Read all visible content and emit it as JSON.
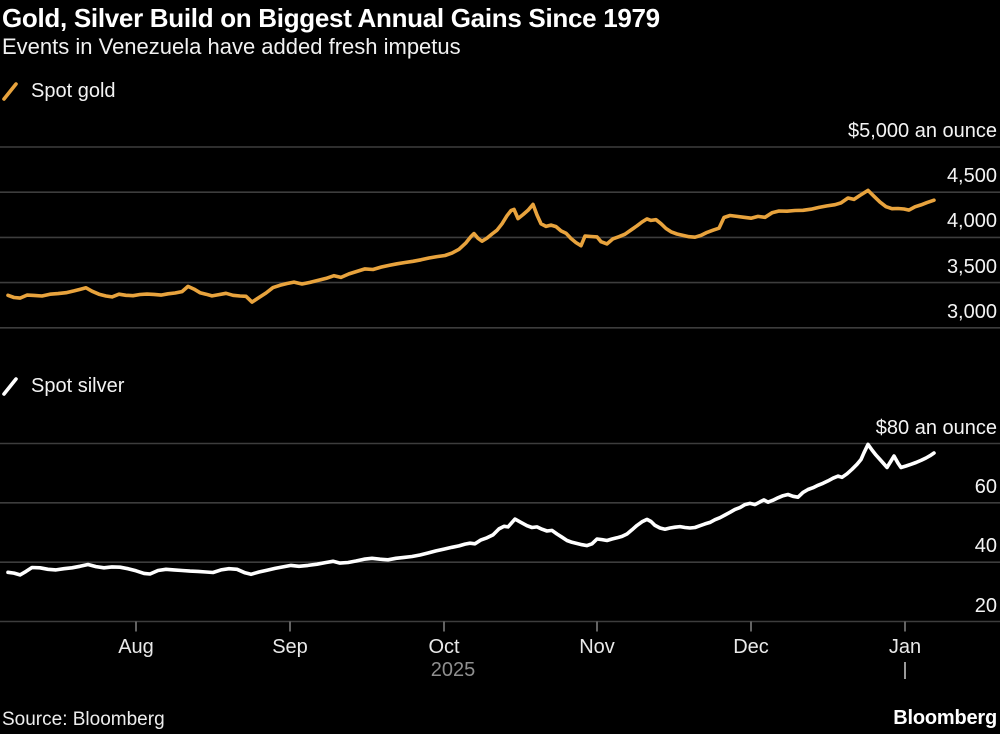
{
  "header": {
    "title": "Gold, Silver Build on Biggest Annual Gains Since 1979",
    "subtitle": "Events in Venezuela have added fresh impetus"
  },
  "source": {
    "label": "Source: Bloomberg"
  },
  "brand": {
    "logo": "Bloomberg"
  },
  "colors": {
    "background": "#000000",
    "gold": "#E8A33D",
    "silver": "#FFFFFF",
    "grid": "#3D3D3D",
    "axis_tick": "#6E6E6E",
    "muted_text": "#8F8F8F"
  },
  "xaxis": {
    "months": [
      "Aug",
      "Sep",
      "Oct",
      "Nov",
      "Dec",
      "Jan"
    ],
    "year_label": "2025",
    "year_divider": "|"
  },
  "chart_data": [
    {
      "type": "line",
      "series_name": "Spot gold",
      "color_key": "gold",
      "ylabel": "$ an ounce",
      "ylim": [
        3000,
        5000
      ],
      "grid": true,
      "legend_position": "top-left",
      "yticks": [
        {
          "value": 5000,
          "label": "$5,000 an ounce"
        },
        {
          "value": 4500,
          "label": "4,500"
        },
        {
          "value": 4000,
          "label": "4,000"
        },
        {
          "value": 3500,
          "label": "3,500"
        },
        {
          "value": 3000,
          "label": "3,000"
        }
      ],
      "points": [
        [
          8,
          3360
        ],
        [
          14,
          3335
        ],
        [
          20,
          3328
        ],
        [
          27,
          3362
        ],
        [
          34,
          3358
        ],
        [
          42,
          3352
        ],
        [
          50,
          3372
        ],
        [
          58,
          3378
        ],
        [
          66,
          3388
        ],
        [
          74,
          3408
        ],
        [
          80,
          3425
        ],
        [
          86,
          3442
        ],
        [
          92,
          3405
        ],
        [
          99,
          3372
        ],
        [
          106,
          3352
        ],
        [
          112,
          3342
        ],
        [
          119,
          3372
        ],
        [
          126,
          3360
        ],
        [
          133,
          3355
        ],
        [
          140,
          3368
        ],
        [
          147,
          3373
        ],
        [
          154,
          3370
        ],
        [
          161,
          3362
        ],
        [
          168,
          3376
        ],
        [
          175,
          3385
        ],
        [
          182,
          3400
        ],
        [
          188,
          3458
        ],
        [
          194,
          3428
        ],
        [
          200,
          3388
        ],
        [
          206,
          3372
        ],
        [
          212,
          3353
        ],
        [
          219,
          3367
        ],
        [
          226,
          3382
        ],
        [
          233,
          3360
        ],
        [
          240,
          3352
        ],
        [
          246,
          3348
        ],
        [
          252,
          3284
        ],
        [
          259,
          3335
        ],
        [
          266,
          3385
        ],
        [
          273,
          3445
        ],
        [
          280,
          3470
        ],
        [
          287,
          3490
        ],
        [
          294,
          3506
        ],
        [
          302,
          3484
        ],
        [
          310,
          3502
        ],
        [
          318,
          3524
        ],
        [
          326,
          3546
        ],
        [
          334,
          3576
        ],
        [
          341,
          3558
        ],
        [
          349,
          3596
        ],
        [
          357,
          3624
        ],
        [
          365,
          3652
        ],
        [
          373,
          3645
        ],
        [
          381,
          3672
        ],
        [
          389,
          3690
        ],
        [
          397,
          3708
        ],
        [
          405,
          3722
        ],
        [
          413,
          3736
        ],
        [
          421,
          3752
        ],
        [
          429,
          3772
        ],
        [
          437,
          3788
        ],
        [
          445,
          3800
        ],
        [
          452,
          3826
        ],
        [
          459,
          3868
        ],
        [
          466,
          3940
        ],
        [
          471,
          4010
        ],
        [
          474,
          4042
        ],
        [
          478,
          3990
        ],
        [
          482,
          3958
        ],
        [
          487,
          3992
        ],
        [
          492,
          4038
        ],
        [
          497,
          4080
        ],
        [
          502,
          4150
        ],
        [
          507,
          4240
        ],
        [
          511,
          4296
        ],
        [
          514,
          4310
        ],
        [
          518,
          4208
        ],
        [
          523,
          4252
        ],
        [
          528,
          4300
        ],
        [
          533,
          4365
        ],
        [
          537,
          4248
        ],
        [
          541,
          4150
        ],
        [
          546,
          4122
        ],
        [
          551,
          4136
        ],
        [
          556,
          4120
        ],
        [
          561,
          4072
        ],
        [
          566,
          4046
        ],
        [
          571,
          3988
        ],
        [
          576,
          3942
        ],
        [
          581,
          3908
        ],
        [
          585,
          4014
        ],
        [
          591,
          4010
        ],
        [
          597,
          4005
        ],
        [
          601,
          3952
        ],
        [
          607,
          3928
        ],
        [
          613,
          3984
        ],
        [
          619,
          4008
        ],
        [
          625,
          4035
        ],
        [
          631,
          4082
        ],
        [
          637,
          4128
        ],
        [
          642,
          4170
        ],
        [
          647,
          4205
        ],
        [
          651,
          4188
        ],
        [
          656,
          4196
        ],
        [
          661,
          4152
        ],
        [
          666,
          4098
        ],
        [
          671,
          4062
        ],
        [
          677,
          4038
        ],
        [
          683,
          4022
        ],
        [
          689,
          4008
        ],
        [
          695,
          4002
        ],
        [
          701,
          4022
        ],
        [
          707,
          4055
        ],
        [
          713,
          4080
        ],
        [
          719,
          4102
        ],
        [
          724,
          4220
        ],
        [
          730,
          4242
        ],
        [
          737,
          4232
        ],
        [
          744,
          4222
        ],
        [
          751,
          4212
        ],
        [
          758,
          4232
        ],
        [
          765,
          4222
        ],
        [
          772,
          4272
        ],
        [
          779,
          4292
        ],
        [
          787,
          4290
        ],
        [
          795,
          4298
        ],
        [
          803,
          4300
        ],
        [
          811,
          4312
        ],
        [
          819,
          4332
        ],
        [
          827,
          4348
        ],
        [
          835,
          4362
        ],
        [
          841,
          4382
        ],
        [
          848,
          4436
        ],
        [
          854,
          4420
        ],
        [
          860,
          4465
        ],
        [
          868,
          4520
        ],
        [
          874,
          4455
        ],
        [
          880,
          4390
        ],
        [
          886,
          4340
        ],
        [
          892,
          4318
        ],
        [
          898,
          4320
        ],
        [
          904,
          4314
        ],
        [
          909,
          4302
        ],
        [
          915,
          4338
        ],
        [
          921,
          4360
        ],
        [
          927,
          4385
        ],
        [
          934,
          4412
        ]
      ]
    },
    {
      "type": "line",
      "series_name": "Spot silver",
      "color_key": "silver",
      "ylabel": "$ an ounce",
      "ylim": [
        20,
        80
      ],
      "grid": true,
      "legend_position": "top-left",
      "yticks": [
        {
          "value": 80,
          "label": "$80 an ounce"
        },
        {
          "value": 60,
          "label": "60"
        },
        {
          "value": 40,
          "label": "40"
        },
        {
          "value": 20,
          "label": "20"
        }
      ],
      "points": [
        [
          8,
          36.6
        ],
        [
          14,
          36.3
        ],
        [
          20,
          35.7
        ],
        [
          26,
          36.9
        ],
        [
          32,
          38.2
        ],
        [
          40,
          38.1
        ],
        [
          48,
          37.6
        ],
        [
          56,
          37.4
        ],
        [
          64,
          37.8
        ],
        [
          72,
          38.1
        ],
        [
          80,
          38.6
        ],
        [
          88,
          39.2
        ],
        [
          96,
          38.5
        ],
        [
          104,
          38.1
        ],
        [
          112,
          38.4
        ],
        [
          120,
          38.3
        ],
        [
          128,
          37.8
        ],
        [
          136,
          37.1
        ],
        [
          144,
          36.2
        ],
        [
          150,
          36.0
        ],
        [
          158,
          37.2
        ],
        [
          166,
          37.6
        ],
        [
          174,
          37.4
        ],
        [
          182,
          37.2
        ],
        [
          190,
          37.0
        ],
        [
          198,
          36.9
        ],
        [
          206,
          36.7
        ],
        [
          213,
          36.5
        ],
        [
          221,
          37.4
        ],
        [
          229,
          37.8
        ],
        [
          237,
          37.6
        ],
        [
          245,
          36.4
        ],
        [
          251,
          35.9
        ],
        [
          259,
          36.7
        ],
        [
          267,
          37.3
        ],
        [
          275,
          37.9
        ],
        [
          283,
          38.4
        ],
        [
          291,
          38.9
        ],
        [
          299,
          38.6
        ],
        [
          308,
          38.9
        ],
        [
          317,
          39.3
        ],
        [
          326,
          39.9
        ],
        [
          333,
          40.3
        ],
        [
          340,
          39.7
        ],
        [
          348,
          39.9
        ],
        [
          356,
          40.4
        ],
        [
          364,
          41.0
        ],
        [
          372,
          41.3
        ],
        [
          380,
          41.0
        ],
        [
          388,
          40.8
        ],
        [
          396,
          41.3
        ],
        [
          404,
          41.6
        ],
        [
          412,
          41.9
        ],
        [
          420,
          42.4
        ],
        [
          428,
          43.1
        ],
        [
          436,
          43.8
        ],
        [
          444,
          44.4
        ],
        [
          452,
          45.0
        ],
        [
          459,
          45.5
        ],
        [
          465,
          46.1
        ],
        [
          470,
          46.4
        ],
        [
          475,
          46.2
        ],
        [
          481,
          47.5
        ],
        [
          487,
          48.2
        ],
        [
          493,
          49.2
        ],
        [
          499,
          51.2
        ],
        [
          504,
          52.1
        ],
        [
          508,
          51.9
        ],
        [
          515,
          54.5
        ],
        [
          521,
          53.4
        ],
        [
          527,
          52.3
        ],
        [
          532,
          51.7
        ],
        [
          537,
          51.9
        ],
        [
          542,
          51.1
        ],
        [
          547,
          50.5
        ],
        [
          552,
          50.7
        ],
        [
          557,
          49.5
        ],
        [
          562,
          48.4
        ],
        [
          567,
          47.3
        ],
        [
          572,
          46.7
        ],
        [
          577,
          46.3
        ],
        [
          582,
          45.9
        ],
        [
          587,
          45.6
        ],
        [
          592,
          46.2
        ],
        [
          597,
          47.8
        ],
        [
          602,
          47.6
        ],
        [
          607,
          47.3
        ],
        [
          612,
          47.8
        ],
        [
          617,
          48.2
        ],
        [
          622,
          48.7
        ],
        [
          627,
          49.5
        ],
        [
          632,
          50.9
        ],
        [
          637,
          52.4
        ],
        [
          642,
          53.6
        ],
        [
          647,
          54.4
        ],
        [
          651,
          53.7
        ],
        [
          655,
          52.4
        ],
        [
          660,
          51.5
        ],
        [
          665,
          51.1
        ],
        [
          670,
          51.5
        ],
        [
          675,
          51.8
        ],
        [
          680,
          52.0
        ],
        [
          685,
          51.7
        ],
        [
          690,
          51.5
        ],
        [
          695,
          51.7
        ],
        [
          700,
          52.3
        ],
        [
          705,
          52.9
        ],
        [
          710,
          53.4
        ],
        [
          715,
          54.3
        ],
        [
          720,
          55.0
        ],
        [
          725,
          55.9
        ],
        [
          730,
          56.8
        ],
        [
          735,
          57.8
        ],
        [
          740,
          58.4
        ],
        [
          745,
          59.4
        ],
        [
          750,
          59.8
        ],
        [
          755,
          59.4
        ],
        [
          760,
          60.3
        ],
        [
          764,
          61.0
        ],
        [
          768,
          60.2
        ],
        [
          773,
          60.9
        ],
        [
          778,
          61.7
        ],
        [
          783,
          62.4
        ],
        [
          788,
          62.8
        ],
        [
          793,
          62.2
        ],
        [
          798,
          61.9
        ],
        [
          803,
          63.5
        ],
        [
          808,
          64.5
        ],
        [
          813,
          65.1
        ],
        [
          818,
          65.9
        ],
        [
          823,
          66.6
        ],
        [
          828,
          67.4
        ],
        [
          833,
          68.3
        ],
        [
          838,
          69.0
        ],
        [
          842,
          68.6
        ],
        [
          847,
          69.8
        ],
        [
          852,
          71.3
        ],
        [
          857,
          73.0
        ],
        [
          861,
          74.6
        ],
        [
          864,
          76.9
        ],
        [
          868,
          79.7
        ],
        [
          872,
          77.8
        ],
        [
          876,
          76.1
        ],
        [
          880,
          74.6
        ],
        [
          884,
          73.1
        ],
        [
          887,
          71.9
        ],
        [
          891,
          74.1
        ],
        [
          894,
          75.8
        ],
        [
          898,
          73.4
        ],
        [
          901,
          71.9
        ],
        [
          906,
          72.4
        ],
        [
          911,
          73.0
        ],
        [
          916,
          73.6
        ],
        [
          921,
          74.3
        ],
        [
          926,
          75.1
        ],
        [
          930,
          75.9
        ],
        [
          934,
          76.8
        ]
      ]
    }
  ]
}
